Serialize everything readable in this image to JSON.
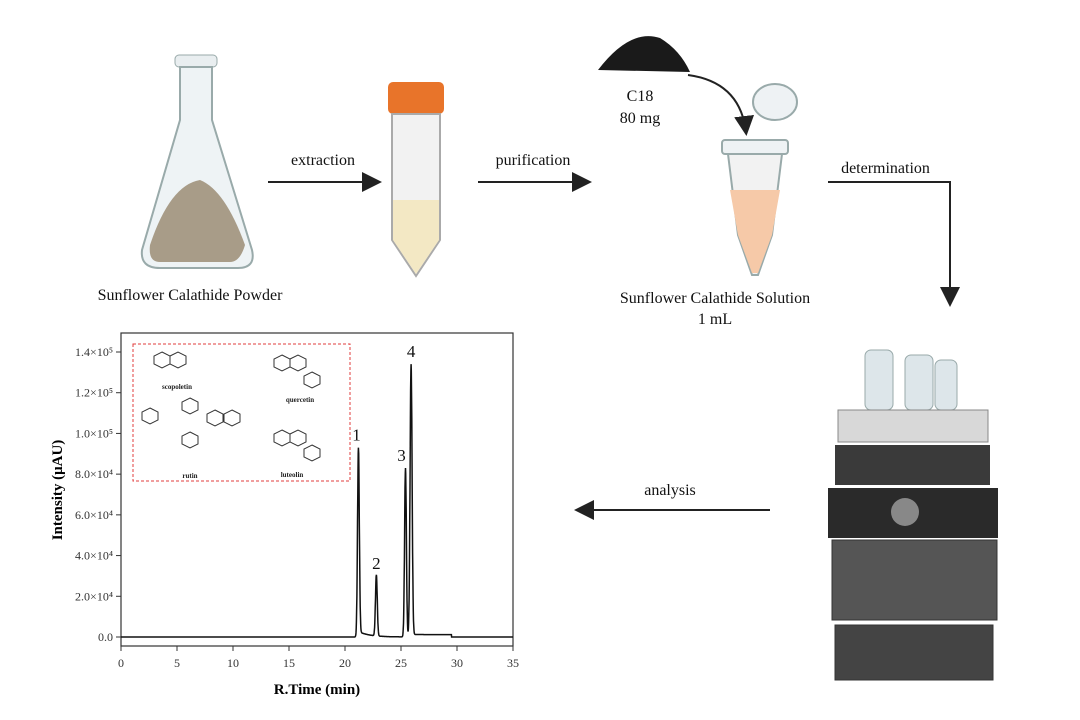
{
  "steps": {
    "powder_label": "Sunflower Calathide Powder",
    "extraction": "extraction",
    "purification": "purification",
    "sorbent_name": "C18",
    "sorbent_amount": "80 mg",
    "solution_label": "Sunflower Calathide Solution",
    "solution_volume": "1 mL",
    "determination": "determination",
    "analysis": "analysis"
  },
  "compounds": [
    "scopoletin",
    "quercetin",
    "rutin",
    "luteolin"
  ],
  "colors": {
    "cap": "#e8742a",
    "solution": "#f6c9a8",
    "tube_liquid": "#f3e8c4",
    "powder": "#a89c88",
    "inset_border": "#e03c3c"
  },
  "chart_data": {
    "type": "line",
    "xlabel": "R.Time (min)",
    "ylabel": "Intensity (μAU)",
    "xlim": [
      0,
      35
    ],
    "ylim": [
      -5000,
      148000
    ],
    "xticks": [
      "0",
      "5",
      "10",
      "15",
      "20",
      "25",
      "30",
      "35"
    ],
    "yticks": [
      "0.0",
      "2.0×10⁴",
      "4.0×10⁴",
      "6.0×10⁴",
      "8.0×10⁴",
      "1.0×10⁵",
      "1.2×10⁵",
      "1.4×10⁵"
    ],
    "ytick_values": [
      0,
      20000,
      40000,
      60000,
      80000,
      100000,
      120000,
      140000
    ],
    "peaks": [
      {
        "label": "1",
        "x": 21.2,
        "y": 93000
      },
      {
        "label": "2",
        "x": 22.8,
        "y": 30000
      },
      {
        "label": "3",
        "x": 25.4,
        "y": 83000
      },
      {
        "label": "4",
        "x": 25.9,
        "y": 134000
      }
    ]
  }
}
